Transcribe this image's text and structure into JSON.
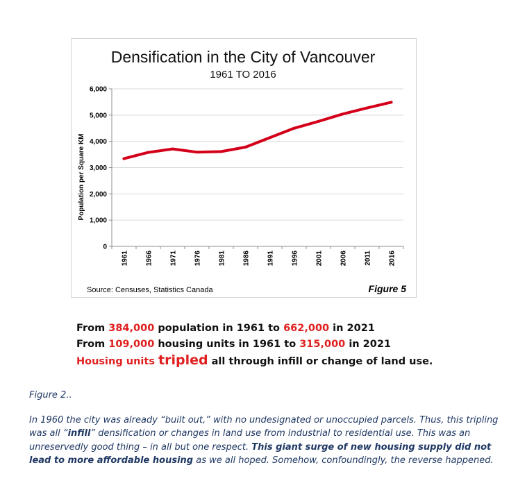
{
  "chart_data": {
    "type": "line",
    "title": "Densification in the City of Vancouver",
    "subtitle": "1961 TO 2016",
    "xlabel": "",
    "ylabel": "Population per Square KM",
    "categories": [
      "1961",
      "1966",
      "1971",
      "1976",
      "1981",
      "1986",
      "1991",
      "1996",
      "2001",
      "2006",
      "2011",
      "2016"
    ],
    "series": [
      {
        "name": "Population per Square KM",
        "values": [
          3340,
          3580,
          3710,
          3590,
          3610,
          3780,
          4140,
          4500,
          4760,
          5040,
          5270,
          5490
        ]
      }
    ],
    "ylim": [
      0,
      6000
    ],
    "yticks": [
      0,
      1000,
      2000,
      3000,
      4000,
      5000,
      6000
    ],
    "ytick_labels": [
      "0",
      "1,000",
      "2,000",
      "3,000",
      "4,000",
      "5,000",
      "6,000"
    ],
    "grid": true,
    "line_color": "#d4001a",
    "source": "Source: Censuses, Statistics Canada",
    "figure_label": "Figure 5"
  },
  "stats": {
    "line1": {
      "prefix": "From ",
      "v1": "384,000",
      "mid": " population in 1961 to ",
      "v2": "662,000",
      "suffix": " in 2021"
    },
    "line2": {
      "prefix": "From ",
      "v1": "109,000",
      "mid": " housing units in 1961 to ",
      "v2": "315,000",
      "suffix": " in 2021"
    },
    "line3": {
      "lead": "Housing units ",
      "big": "tripled",
      "rest": " all through infill or change of land use."
    }
  },
  "caption": "Figure 2..",
  "paragraph": {
    "p1": " In 1960 the city was already “built out,” with no undesignated or unoccupied parcels. Thus, this tripling was all “",
    "b1": "infill",
    "p2": "” densification or changes in land use from industrial to residential use. This was an unreservedly good thing – in all but one respect. ",
    "b2": "This giant surge of new housing supply did not lead to more affordable housing",
    "p3": " as we all hoped. Somehow, confoundingly, the reverse happened."
  },
  "colors": {
    "accent_red": "#e02020",
    "paragraph_blue": "#1f3864"
  }
}
